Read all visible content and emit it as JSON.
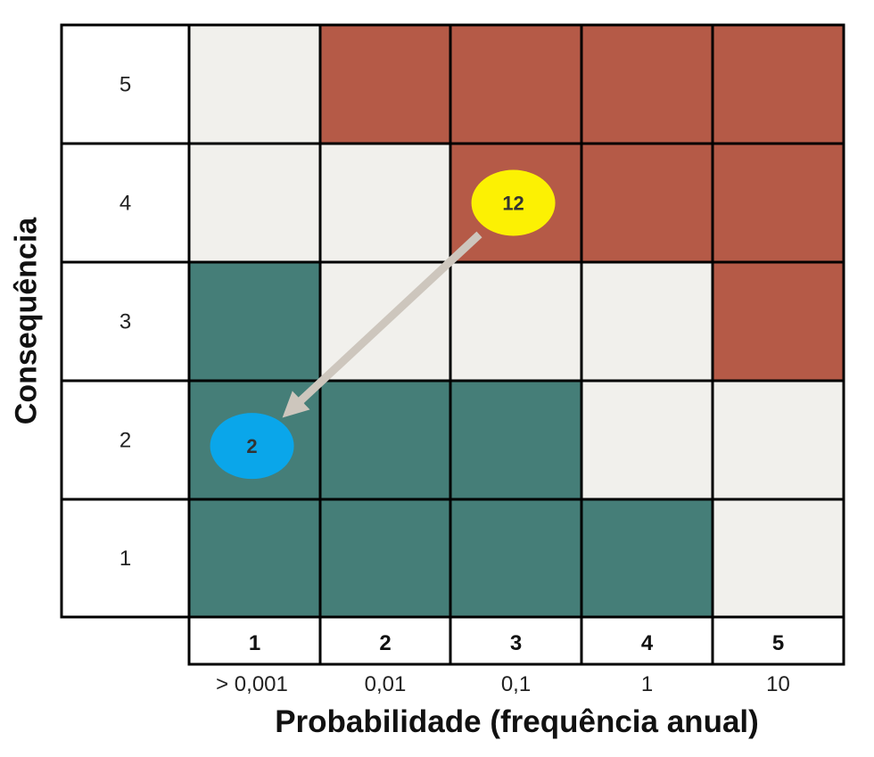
{
  "chart_data": {
    "type": "heatmap",
    "xlabel": "Probabilidade (frequência anual)",
    "ylabel": "Consequência",
    "x_categories": [
      "1",
      "2",
      "3",
      "4",
      "5"
    ],
    "x_frequencies": [
      "> 0,001",
      "0,01",
      "0,1",
      "1",
      "10"
    ],
    "y_categories": [
      "1",
      "2",
      "3",
      "4",
      "5"
    ],
    "colors": {
      "high": "#b55a47",
      "medium": "#f1f0ec",
      "low": "#457e78",
      "marker_before": "#fcf103",
      "marker_after": "#0aa6ea",
      "arrow": "#cdc6bd"
    },
    "cells": [
      [
        "low",
        "low",
        "low",
        "low",
        "medium"
      ],
      [
        "low",
        "low",
        "low",
        "medium",
        "medium"
      ],
      [
        "low",
        "medium",
        "medium",
        "medium",
        "high"
      ],
      [
        "medium",
        "medium",
        "high",
        "high",
        "high"
      ],
      [
        "medium",
        "high",
        "high",
        "high",
        "high"
      ]
    ],
    "markers": [
      {
        "label": "12",
        "probability": 3,
        "consequence": 4,
        "color_key": "marker_before"
      },
      {
        "label": "2",
        "probability": 1,
        "consequence": 2,
        "color_key": "marker_after"
      }
    ],
    "arrow": {
      "from": 0,
      "to": 1
    }
  }
}
